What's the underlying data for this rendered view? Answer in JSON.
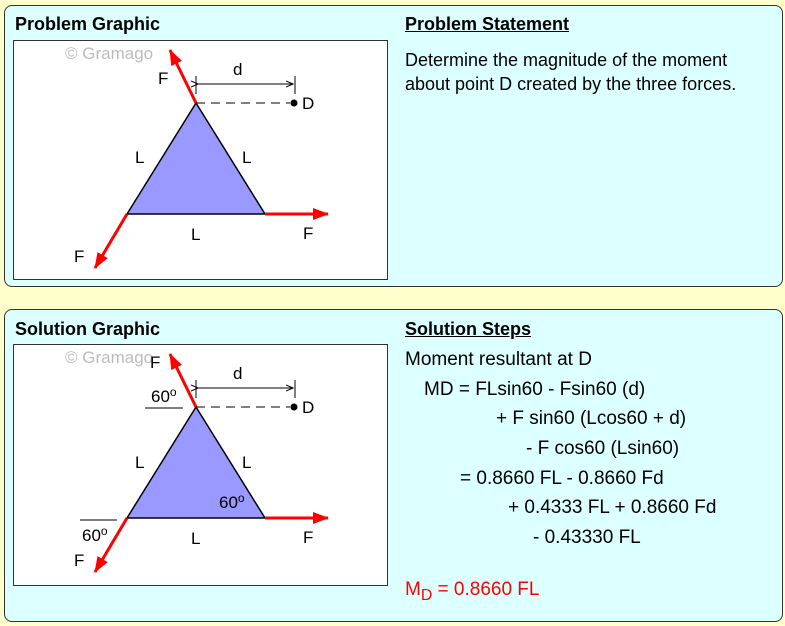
{
  "problem": {
    "graphic_title": "Problem Graphic",
    "statement_title": "Problem Statement",
    "statement": "Determine the magnitude of the moment about point D created by the three forces."
  },
  "solution": {
    "graphic_title": "Solution Graphic",
    "steps_title": "Solution Steps",
    "steps": [
      "Moment resultant at D",
      "MD = FLsin60 - Fsin60 (d)",
      "+ F sin60 (Lcos60 + d)",
      "- F cos60 (Lsin60)",
      "= 0.8660 FL - 0.8660 Fd",
      "+ 0.4333 FL + 0.8660 Fd",
      "- 0.43330 FL"
    ],
    "result_main": "M",
    "result_sub": "D",
    "result_rest": " = 0.8660 FL"
  },
  "diagram": {
    "watermark": "© Gramago",
    "force": "F",
    "length": "L",
    "distance": "d",
    "point": "D",
    "angle": "60",
    "degree": "o"
  },
  "colors": {
    "background": "#ffffcc",
    "panel": "#dcffff",
    "triangle": "#9999ff",
    "force": "#ff0000",
    "result": "#ff0000"
  }
}
